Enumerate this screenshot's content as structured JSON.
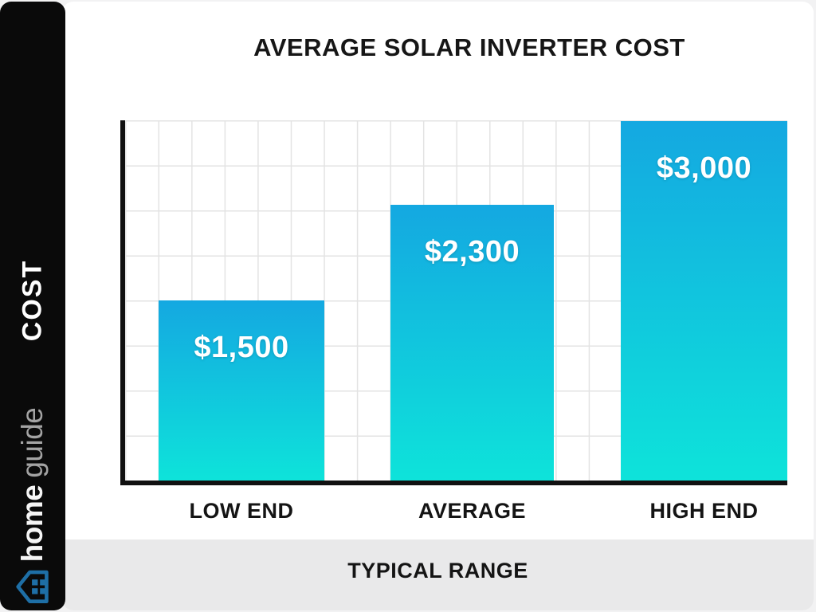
{
  "title": "AVERAGE SOLAR INVERTER COST",
  "sidebar": {
    "axis_label": "COST",
    "brand_home": "home",
    "brand_guide": "guide",
    "logo": "homeguide-house-icon",
    "logo_color": "#1e6fa6"
  },
  "footer": {
    "label": "TYPICAL RANGE"
  },
  "colors": {
    "bar_top": "#14a8e1",
    "bar_bottom": "#0ee3da",
    "axis": "#111111",
    "gridline": "#e3e3e3",
    "band_bg": "#e9e9ea",
    "sidebar_bg": "#0a0a0a"
  },
  "chart_data": {
    "type": "bar",
    "categories": [
      "LOW END",
      "AVERAGE",
      "HIGH END"
    ],
    "values": [
      1500,
      2300,
      3000
    ],
    "value_labels": [
      "$1,500",
      "$2,300",
      "$3,000"
    ],
    "title": "AVERAGE SOLAR INVERTER COST",
    "xlabel": "TYPICAL RANGE",
    "ylabel": "COST",
    "ylim": [
      0,
      3000
    ],
    "grid": true,
    "legend": false
  }
}
